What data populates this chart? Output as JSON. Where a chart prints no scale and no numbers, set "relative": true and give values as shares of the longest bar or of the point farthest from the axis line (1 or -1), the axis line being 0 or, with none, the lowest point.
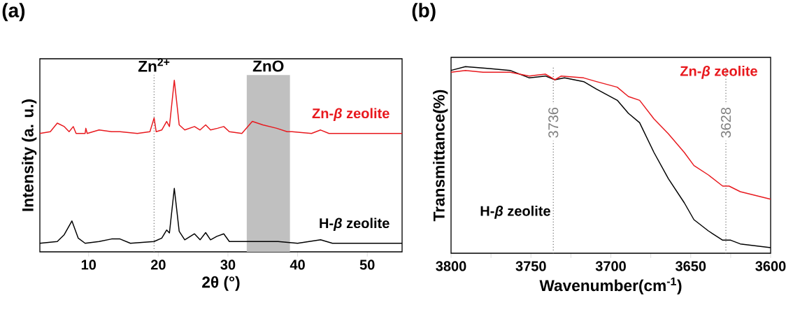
{
  "chart_data": [
    {
      "type": "line",
      "relative": true,
      "xlabel": "2θ (°)",
      "ylabel": "Intensity (a. u.)",
      "xlim": [
        3,
        55
      ],
      "xticks": [
        10,
        20,
        30,
        40,
        50
      ],
      "annotations": [
        "(a)"
      ],
      "ref_lines": [
        {
          "axis": "x",
          "value": 19.4,
          "label": "Zn$^{2+}$",
          "color": "#808080",
          "line_style": "dotted"
        }
      ],
      "bands": [
        {
          "axis": "x",
          "from": 32.7,
          "to": 38.9,
          "label": "ZnO",
          "color": "#c0c0c0"
        }
      ],
      "series": [
        {
          "name": "Zn-*β* zeolite",
          "color": "#e8191e",
          "x": [
            3,
            4.5,
            5.5,
            6.5,
            7.2,
            7.8,
            8.2,
            9.5,
            9.6,
            9.8,
            11.5,
            13.3,
            14.5,
            17,
            18.8,
            19.4,
            19.7,
            20.5,
            21.2,
            21.6,
            22.3,
            23,
            23.8,
            25.2,
            26,
            26.8,
            27.5,
            28.5,
            29.4,
            30.2,
            32,
            33.5,
            35,
            37,
            38.5,
            39.2,
            42,
            43.3,
            44.5,
            50,
            55
          ],
          "values": [
            0.69,
            0.7,
            0.75,
            0.73,
            0.7,
            0.73,
            0.69,
            0.69,
            0.72,
            0.69,
            0.71,
            0.7,
            0.7,
            0.69,
            0.7,
            0.78,
            0.7,
            0.71,
            0.76,
            0.73,
            1.0,
            0.74,
            0.71,
            0.73,
            0.71,
            0.74,
            0.71,
            0.72,
            0.73,
            0.7,
            0.69,
            0.76,
            0.74,
            0.72,
            0.7,
            0.7,
            0.69,
            0.71,
            0.69,
            0.69,
            0.69
          ]
        },
        {
          "name": "H-*β* zeolite",
          "color": "#000000",
          "x": [
            3,
            5.5,
            6.5,
            7.6,
            8.5,
            9.5,
            11.5,
            13.3,
            14.5,
            16,
            19.4,
            20.5,
            21.2,
            21.6,
            22.3,
            23,
            23.8,
            25.2,
            26,
            26.8,
            27.5,
            28.4,
            29.4,
            30.2,
            33.2,
            36,
            37.2,
            40,
            43.3,
            45,
            50,
            55
          ],
          "values": [
            0.05,
            0.06,
            0.1,
            0.18,
            0.08,
            0.05,
            0.06,
            0.075,
            0.075,
            0.05,
            0.06,
            0.08,
            0.127,
            0.11,
            0.37,
            0.12,
            0.07,
            0.105,
            0.07,
            0.112,
            0.07,
            0.09,
            0.105,
            0.06,
            0.06,
            0.06,
            0.06,
            0.05,
            0.07,
            0.05,
            0.05,
            0.05
          ]
        }
      ]
    },
    {
      "type": "line",
      "relative": true,
      "xlabel": "Wavenumber(cm$^{-1}$)",
      "ylabel": "Transmittance(%)",
      "xlim": [
        3800,
        3600
      ],
      "xticks": [
        3800,
        {
          "value": 3775,
          "label": null
        },
        3750,
        {
          "value": 3725,
          "label": null
        },
        3700,
        {
          "value": 3675,
          "label": null
        },
        3650,
        {
          "value": 3625,
          "label": null
        },
        3600
      ],
      "annotations": [
        "(b)"
      ],
      "ref_lines": [
        {
          "axis": "x",
          "value": 3736,
          "label": "3736",
          "color": "#808080",
          "line_style": "dotted"
        },
        {
          "axis": "x",
          "value": 3628,
          "label": "3628",
          "color": "#808080",
          "line_style": "dotted"
        }
      ],
      "series": [
        {
          "name": "H-*β* zeolite",
          "color": "#000000",
          "x": [
            3800,
            3791,
            3776,
            3763,
            3751,
            3741,
            3735,
            3729,
            3717,
            3709,
            3696,
            3689,
            3682,
            3673,
            3664,
            3654,
            3648,
            3639,
            3630,
            3625,
            3619,
            3600
          ],
          "values": [
            0.98,
            1.0,
            0.99,
            0.98,
            0.94,
            0.95,
            0.93,
            0.94,
            0.92,
            0.88,
            0.82,
            0.75,
            0.7,
            0.54,
            0.4,
            0.27,
            0.18,
            0.12,
            0.07,
            0.07,
            0.05,
            0.03
          ]
        },
        {
          "name": "Zn-*β* zeolite",
          "color": "#e8191e",
          "x": [
            3800,
            3791,
            3780,
            3763,
            3751,
            3741,
            3735,
            3731,
            3717,
            3709,
            3696,
            3689,
            3682,
            3673,
            3664,
            3654,
            3648,
            3639,
            3630,
            3626,
            3619,
            3600
          ],
          "values": [
            0.97,
            0.98,
            0.97,
            0.97,
            0.95,
            0.96,
            0.93,
            0.95,
            0.94,
            0.92,
            0.89,
            0.84,
            0.82,
            0.72,
            0.64,
            0.54,
            0.47,
            0.42,
            0.36,
            0.36,
            0.33,
            0.29
          ]
        }
      ]
    }
  ]
}
